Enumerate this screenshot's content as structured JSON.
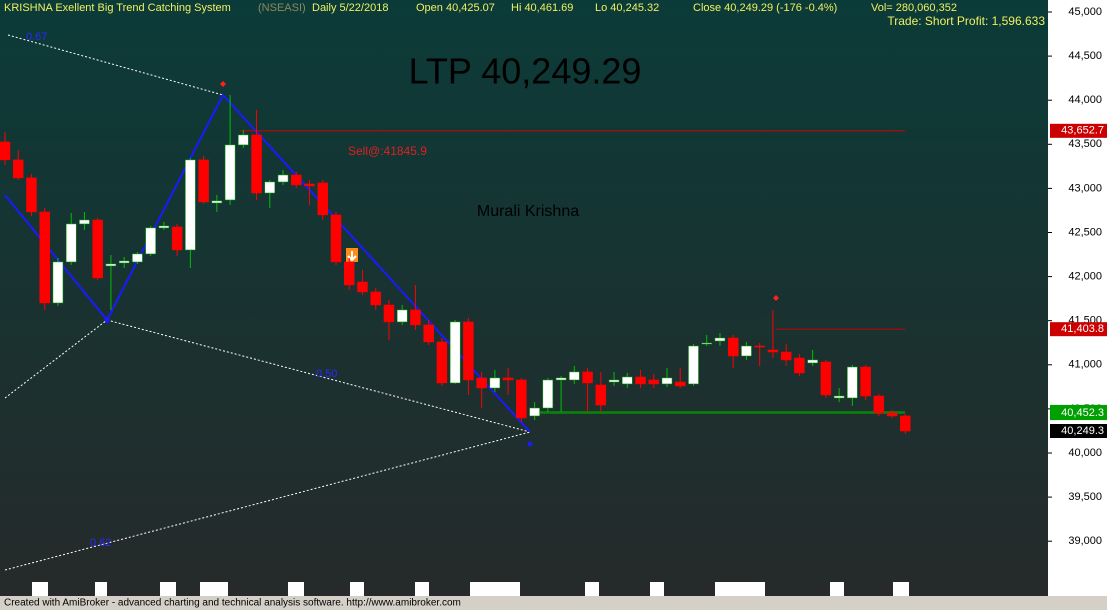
{
  "chart_data": {
    "type": "candlestick",
    "title": "KRISHNA Exellent Big Trend Catching System",
    "exchange": "(NSEASI)",
    "interval": "Daily  5/22/2018",
    "open_text": "Open 40,425.07",
    "high_text": "Hi 40,461.69",
    "low_text": "Lo 40,245.32",
    "close_text": "Close 40,249.29 (-176 -0.4%)",
    "volume_text": "Vol= 280,060,352",
    "trade_text": "Trade: Short Profit: 1,596.633",
    "ltp_text": "LTP 40,249.29",
    "author_text": "Murali Krishna",
    "signal_text": "Sell@:41845.9",
    "fib_labels": [
      "0.67",
      "0.50",
      "0.62"
    ],
    "footer": "Created with AmiBroker - advanced charting and technical analysis software. http://www.amibroker.com",
    "ylim": [
      38560,
      45136
    ],
    "yticks": [
      {
        "value": 39000,
        "label": "39,000"
      },
      {
        "value": 39500,
        "label": "39,500"
      },
      {
        "value": 40000,
        "label": "40,000"
      },
      {
        "value": 40500,
        "label": "40,500"
      },
      {
        "value": 41000,
        "label": "41,000"
      },
      {
        "value": 41500,
        "label": "41,500"
      },
      {
        "value": 42000,
        "label": "42,000"
      },
      {
        "value": 42500,
        "label": "42,500"
      },
      {
        "value": 43000,
        "label": "43,000"
      },
      {
        "value": 43500,
        "label": "43,500"
      },
      {
        "value": 44000,
        "label": "44,000"
      },
      {
        "value": 44500,
        "label": "44,500"
      },
      {
        "value": 45000,
        "label": "45,000"
      }
    ],
    "up_color": "#ffffff",
    "down_color": "#ff0000",
    "levels": [
      {
        "value": 43652.7,
        "label": "43,652.7",
        "color": "#cc0000"
      },
      {
        "value": 41403.8,
        "label": "41,403.8",
        "color": "#cc0000"
      },
      {
        "value": 40465.8,
        "label": "40,465.8",
        "color": "#00a000"
      },
      {
        "value": 40452.3,
        "label": "40,452.3",
        "color": "#00a000"
      },
      {
        "value": 40249.3,
        "label": "40,249.3",
        "color": "#000000"
      }
    ],
    "candles": [
      {
        "open": 43527,
        "high": 43640,
        "low": 43266,
        "close": 43323
      },
      {
        "open": 43323,
        "high": 43436,
        "low": 43096,
        "close": 43119
      },
      {
        "open": 43119,
        "high": 43164,
        "low": 42688,
        "close": 42733
      },
      {
        "open": 42733,
        "high": 42778,
        "low": 41622,
        "close": 41701
      },
      {
        "open": 41701,
        "high": 42211,
        "low": 41667,
        "close": 42166
      },
      {
        "open": 42166,
        "high": 42722,
        "low": 42132,
        "close": 42597
      },
      {
        "open": 42597,
        "high": 42733,
        "low": 42529,
        "close": 42642
      },
      {
        "open": 42642,
        "high": 42665,
        "low": 41962,
        "close": 41985
      },
      {
        "open": 42121,
        "high": 42245,
        "low": 41622,
        "close": 42143
      },
      {
        "open": 42155,
        "high": 42223,
        "low": 42098,
        "close": 42177
      },
      {
        "open": 42166,
        "high": 42279,
        "low": 42143,
        "close": 42257
      },
      {
        "open": 42257,
        "high": 42574,
        "low": 42234,
        "close": 42552
      },
      {
        "open": 42552,
        "high": 42620,
        "low": 42529,
        "close": 42574
      },
      {
        "open": 42563,
        "high": 42597,
        "low": 42234,
        "close": 42302
      },
      {
        "open": 42302,
        "high": 43345,
        "low": 42098,
        "close": 43323
      },
      {
        "open": 43323,
        "high": 43368,
        "low": 42824,
        "close": 42846
      },
      {
        "open": 42835,
        "high": 42926,
        "low": 42733,
        "close": 42858
      },
      {
        "open": 42869,
        "high": 44060,
        "low": 42812,
        "close": 43493
      },
      {
        "open": 43493,
        "high": 43663,
        "low": 43459,
        "close": 43606
      },
      {
        "open": 43606,
        "high": 43890,
        "low": 42869,
        "close": 42948
      },
      {
        "open": 42948,
        "high": 43096,
        "low": 42778,
        "close": 43073
      },
      {
        "open": 43073,
        "high": 43209,
        "low": 43039,
        "close": 43152
      },
      {
        "open": 43152,
        "high": 43187,
        "low": 43005,
        "close": 43039
      },
      {
        "open": 43050,
        "high": 43096,
        "low": 42812,
        "close": 43028
      },
      {
        "open": 43062,
        "high": 43096,
        "low": 42642,
        "close": 42699
      },
      {
        "open": 42699,
        "high": 42733,
        "low": 42132,
        "close": 42166
      },
      {
        "open": 42166,
        "high": 42211,
        "low": 41848,
        "close": 41905
      },
      {
        "open": 41939,
        "high": 42075,
        "low": 41792,
        "close": 41826
      },
      {
        "open": 41826,
        "high": 41871,
        "low": 41622,
        "close": 41678
      },
      {
        "open": 41678,
        "high": 41735,
        "low": 41281,
        "close": 41486
      },
      {
        "open": 41486,
        "high": 41678,
        "low": 41452,
        "close": 41622
      },
      {
        "open": 41622,
        "high": 41905,
        "low": 41395,
        "close": 41452
      },
      {
        "open": 41452,
        "high": 41508,
        "low": 41225,
        "close": 41259
      },
      {
        "open": 41259,
        "high": 41304,
        "low": 40760,
        "close": 40794
      },
      {
        "open": 40794,
        "high": 41508,
        "low": 40783,
        "close": 41486
      },
      {
        "open": 41486,
        "high": 41531,
        "low": 40658,
        "close": 40828
      },
      {
        "open": 40851,
        "high": 40919,
        "low": 40510,
        "close": 40737
      },
      {
        "open": 40737,
        "high": 40942,
        "low": 40692,
        "close": 40851
      },
      {
        "open": 40851,
        "high": 40964,
        "low": 40658,
        "close": 40828
      },
      {
        "open": 40828,
        "high": 40851,
        "low": 40352,
        "close": 40397
      },
      {
        "open": 40420,
        "high": 40578,
        "low": 40374,
        "close": 40510
      },
      {
        "open": 40510,
        "high": 40851,
        "low": 40465,
        "close": 40828
      },
      {
        "open": 40828,
        "high": 40873,
        "low": 40465,
        "close": 40851
      },
      {
        "open": 40828,
        "high": 40987,
        "low": 40783,
        "close": 40919
      },
      {
        "open": 40919,
        "high": 40964,
        "low": 40465,
        "close": 40794
      },
      {
        "open": 40771,
        "high": 40919,
        "low": 40465,
        "close": 40544
      },
      {
        "open": 40805,
        "high": 40919,
        "low": 40760,
        "close": 40828
      },
      {
        "open": 40783,
        "high": 40907,
        "low": 40737,
        "close": 40862
      },
      {
        "open": 40862,
        "high": 40942,
        "low": 40737,
        "close": 40783
      },
      {
        "open": 40828,
        "high": 40896,
        "low": 40737,
        "close": 40783
      },
      {
        "open": 40783,
        "high": 40964,
        "low": 40748,
        "close": 40851
      },
      {
        "open": 40805,
        "high": 40964,
        "low": 40737,
        "close": 40760
      },
      {
        "open": 40783,
        "high": 41236,
        "low": 40760,
        "close": 41213
      },
      {
        "open": 41236,
        "high": 41338,
        "low": 41213,
        "close": 41247
      },
      {
        "open": 41270,
        "high": 41361,
        "low": 41213,
        "close": 41304
      },
      {
        "open": 41304,
        "high": 41338,
        "low": 40964,
        "close": 41100
      },
      {
        "open": 41100,
        "high": 41259,
        "low": 41055,
        "close": 41213
      },
      {
        "open": 41213,
        "high": 41247,
        "low": 40987,
        "close": 41202
      },
      {
        "open": 41168,
        "high": 41622,
        "low": 41077,
        "close": 41145
      },
      {
        "open": 41145,
        "high": 41236,
        "low": 40987,
        "close": 41055
      },
      {
        "open": 41077,
        "high": 41123,
        "low": 40873,
        "close": 40907
      },
      {
        "open": 41021,
        "high": 41168,
        "low": 40987,
        "close": 41055
      },
      {
        "open": 41032,
        "high": 41055,
        "low": 40624,
        "close": 40658
      },
      {
        "open": 40624,
        "high": 40737,
        "low": 40578,
        "close": 40646
      },
      {
        "open": 40624,
        "high": 40998,
        "low": 40533,
        "close": 40975
      },
      {
        "open": 40975,
        "high": 40998,
        "low": 40601,
        "close": 40646
      },
      {
        "open": 40646,
        "high": 40669,
        "low": 40420,
        "close": 40454
      },
      {
        "open": 40454,
        "high": 40488,
        "low": 40397,
        "close": 40420
      },
      {
        "open": 40420,
        "high": 40442,
        "low": 40215,
        "close": 40249
      }
    ]
  }
}
